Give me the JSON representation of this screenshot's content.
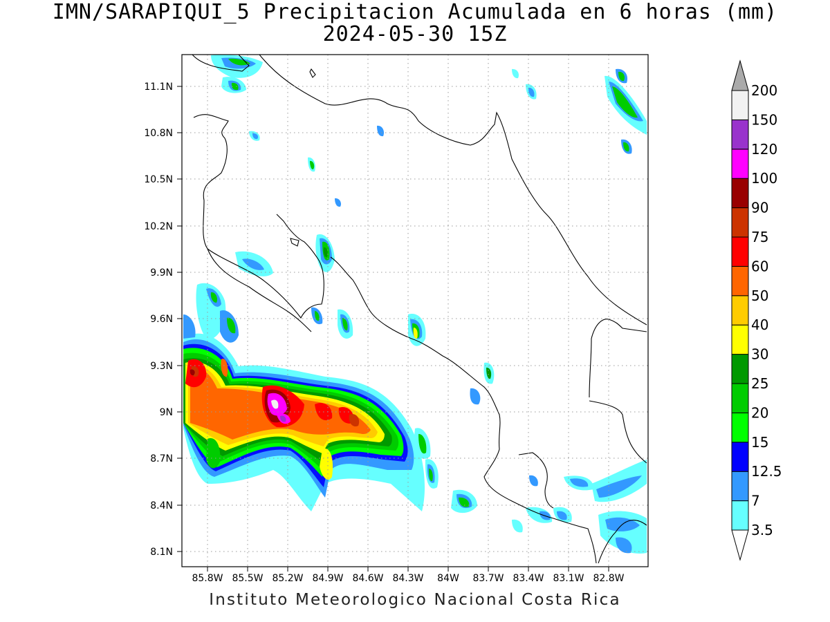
{
  "title_line1": "IMN/SARAPIQUI_5 Precipitacion Acumulada en 6 horas (mm)",
  "title_line2": "2024-05-30 15Z",
  "footer": "Instituto Meteorologico Nacional Costa Rica",
  "map": {
    "lon_range": [
      -86.0,
      -82.5
    ],
    "lat_range": [
      8.0,
      11.3
    ],
    "lat_ticks": [
      "11.1N",
      "10.8N",
      "10.5N",
      "10.2N",
      "9.9N",
      "9.6N",
      "9.3N",
      "9N",
      "8.7N",
      "8.4N",
      "8.1N"
    ],
    "lon_ticks": [
      "85.8W",
      "85.5W",
      "85.2W",
      "84.9W",
      "84.6W",
      "84.3W",
      "84W",
      "83.7W",
      "83.4W",
      "83.1W",
      "82.8W"
    ],
    "grid": "dotted"
  },
  "colorbar": {
    "labels": [
      "3.5",
      "7",
      "12.5",
      "15",
      "20",
      "25",
      "30",
      "40",
      "50",
      "60",
      "75",
      "90",
      "100",
      "120",
      "150",
      "200"
    ],
    "colors": [
      "#66ffff",
      "#3399ff",
      "#0000ff",
      "#00ff00",
      "#00cc00",
      "#009900",
      "#ffff00",
      "#ffcc00",
      "#ff6600",
      "#ff0000",
      "#cc3300",
      "#990000",
      "#ff00ff",
      "#9933cc",
      "#f2f2f2",
      "#aaaaaa"
    ]
  }
}
